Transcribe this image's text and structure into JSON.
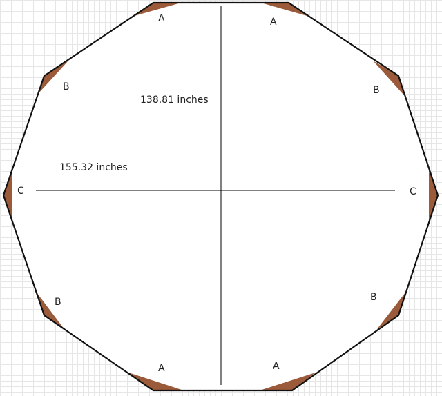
{
  "measurements": {
    "vertical": "138.81 inches",
    "horizontal": "155.32 inches"
  },
  "corner_labels": {
    "a": "A",
    "b": "B",
    "c": "C"
  },
  "colors": {
    "outline": "#111111",
    "wedge": "#9b5a3a",
    "guide": "#000000"
  }
}
